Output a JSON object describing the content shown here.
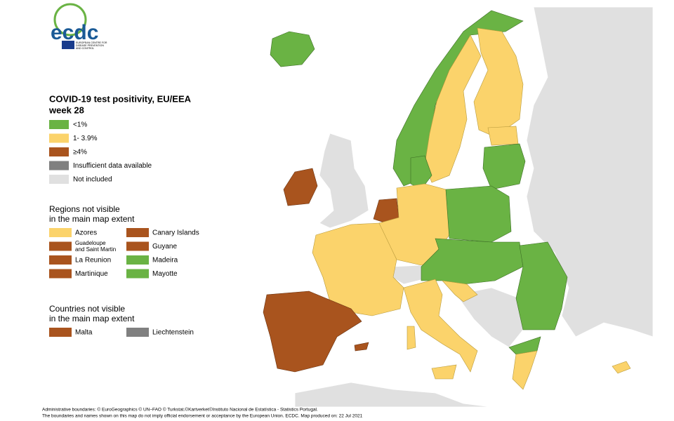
{
  "logo": {
    "name": "ecdc",
    "subtitle": [
      "EUROPEAN CENTRE FOR",
      "DISEASE PREVENTION",
      "AND CONTROL"
    ]
  },
  "legend": {
    "title": [
      "COVID-19 test positivity, EU/EEA",
      "week 28"
    ],
    "items": [
      {
        "label": "<1%",
        "color": "#6ab344"
      },
      {
        "label": "1- 3.9%",
        "color": "#fbd36b"
      },
      {
        "label": "≥4%",
        "color": "#a9541e"
      },
      {
        "label": "Insufficient data available",
        "color": "#808080"
      },
      {
        "label": "Not included",
        "color": "#e0e0e0"
      }
    ]
  },
  "regions": {
    "title": [
      "Regions not visible",
      "in the main map extent"
    ],
    "items": [
      {
        "label": [
          "Azores"
        ],
        "color": "#fbd36b"
      },
      {
        "label": [
          "Canary Islands"
        ],
        "color": "#a9541e"
      },
      {
        "label": [
          "Guadeloupe",
          "and Saint Martin"
        ],
        "color": "#a9541e"
      },
      {
        "label": [
          "Guyane"
        ],
        "color": "#a9541e"
      },
      {
        "label": [
          "La Reunion"
        ],
        "color": "#a9541e"
      },
      {
        "label": [
          "Madeira"
        ],
        "color": "#6ab344"
      },
      {
        "label": [
          "Martinique"
        ],
        "color": "#a9541e"
      },
      {
        "label": [
          "Mayotte"
        ],
        "color": "#6ab344"
      }
    ]
  },
  "countries": {
    "title": [
      "Countries not visible",
      "in the main map extent"
    ],
    "items": [
      {
        "label": [
          "Malta"
        ],
        "color": "#a9541e"
      },
      {
        "label": [
          "Liechtenstein"
        ],
        "color": "#808080"
      }
    ]
  },
  "footer": [
    "Administrative boundaries: © EuroGeographics © UN–FAO © Turkstat.©Kartverket©Instituto Nacional de Estatística - Statistics Portugal.",
    "The boundaries and names shown on this map do not imply official endorsement or acceptance by the European Union. ECDC. Map produced on: 22 Jul 2021"
  ]
}
